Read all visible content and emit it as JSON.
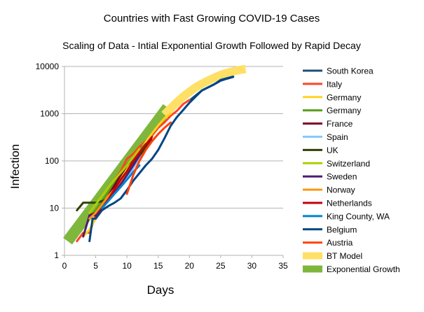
{
  "chart_data": {
    "type": "line",
    "title": "Countries with Fast Growing COVID-19 Cases",
    "subtitle": "Scaling of Data - Intial Exponential Growth Followed by Rapid Decay",
    "xlabel": "Days",
    "ylabel": "Infection",
    "xlim": [
      0,
      35
    ],
    "ylim": [
      1,
      10000
    ],
    "yscale": "log",
    "x_ticks": [
      0,
      5,
      10,
      15,
      20,
      25,
      30,
      35
    ],
    "x_tick_labels": [
      "0",
      "5",
      "10",
      "15",
      "20",
      "25",
      "30",
      "35"
    ],
    "y_ticks": [
      1,
      10,
      100,
      1000,
      10000
    ],
    "y_tick_labels": [
      "1",
      "10",
      "100",
      "1000",
      "10000"
    ],
    "legend_position": "right",
    "series": [
      {
        "name": "South Korea",
        "color": "#1f4e79",
        "width": 3,
        "x": [
          20,
          22,
          24,
          25,
          27
        ],
        "y": [
          1900,
          3100,
          4200,
          5200,
          6100
        ]
      },
      {
        "name": "Italy",
        "color": "#ff4422",
        "width": 3,
        "x": [
          2,
          3,
          4,
          5,
          6,
          7,
          8,
          9,
          10,
          11,
          12,
          13,
          14,
          15,
          16,
          17,
          18,
          19,
          20
        ],
        "y": [
          2,
          3,
          3,
          7,
          12,
          20,
          40,
          60,
          110,
          140,
          200,
          260,
          350,
          500,
          650,
          900,
          1150,
          1600,
          1950
        ]
      },
      {
        "name": "Germany",
        "color": "#ffd320",
        "width": 3,
        "x": [
          3,
          4,
          5,
          6,
          7,
          8,
          9,
          10,
          11,
          12,
          13,
          14,
          15,
          16,
          17
        ],
        "y": [
          2.5,
          3.5,
          6,
          9,
          15,
          25,
          40,
          65,
          100,
          160,
          250,
          380,
          560,
          800,
          1000
        ]
      },
      {
        "name": "Germany",
        "color": "#579d1c",
        "width": 3,
        "x": [
          4,
          5,
          6,
          7,
          8,
          9,
          10,
          11,
          12,
          13
        ],
        "y": [
          6,
          9,
          14,
          22,
          35,
          55,
          85,
          120,
          170,
          230
        ]
      },
      {
        "name": "France",
        "color": "#7e0021",
        "width": 3,
        "x": [
          4,
          5,
          6,
          7,
          8,
          9,
          10,
          11,
          12,
          13,
          14
        ],
        "y": [
          7,
          8,
          12,
          18,
          30,
          50,
          80,
          110,
          150,
          200,
          280
        ]
      },
      {
        "name": "Spain",
        "color": "#83caff",
        "width": 3,
        "x": [
          5,
          6,
          7,
          8,
          9,
          10,
          11,
          12,
          13
        ],
        "y": [
          8,
          11,
          16,
          22,
          30,
          42,
          70,
          120,
          200
        ]
      },
      {
        "name": "UK",
        "color": "#314004",
        "width": 3,
        "x": [
          2,
          3,
          4,
          5,
          6,
          7,
          8,
          9,
          10,
          11,
          12,
          13,
          14
        ],
        "y": [
          9,
          13,
          13,
          13,
          14,
          16,
          22,
          36,
          55,
          85,
          130,
          190,
          260
        ]
      },
      {
        "name": "Switzerland",
        "color": "#aecf00",
        "width": 3,
        "x": [
          4,
          5,
          6,
          7,
          8,
          9,
          10,
          11,
          12
        ],
        "y": [
          8,
          12,
          18,
          27,
          40,
          56,
          80,
          120,
          180
        ]
      },
      {
        "name": "Sweden",
        "color": "#4b1f6f",
        "width": 3,
        "x": [
          3,
          4,
          5,
          6,
          7,
          8,
          9,
          10,
          11,
          12
        ],
        "y": [
          2.5,
          7,
          7,
          12,
          16,
          22,
          32,
          50,
          80,
          130
        ]
      },
      {
        "name": "Norway",
        "color": "#ff950e",
        "width": 3,
        "x": [
          4,
          5,
          6,
          7,
          8,
          9,
          10,
          11,
          12
        ],
        "y": [
          6,
          8,
          12,
          18,
          25,
          38,
          60,
          100,
          160
        ]
      },
      {
        "name": "Netherlands",
        "color": "#c5000b",
        "width": 3,
        "x": [
          5,
          6,
          7,
          8,
          9,
          10,
          11,
          12,
          13,
          14
        ],
        "y": [
          6,
          10,
          15,
          25,
          40,
          60,
          100,
          150,
          220,
          320
        ]
      },
      {
        "name": "King County, WA",
        "color": "#0084d1",
        "width": 3,
        "x": [
          6,
          7,
          8,
          9,
          10,
          11,
          12
        ],
        "y": [
          10,
          14,
          20,
          28,
          40,
          58,
          80
        ]
      },
      {
        "name": "Belgium",
        "color": "#004586",
        "width": 3,
        "x": [
          4,
          4.5,
          5,
          6,
          7,
          8,
          9,
          10,
          11,
          12,
          13,
          14,
          15,
          16,
          17,
          18,
          19,
          20,
          21,
          22,
          23,
          24,
          25,
          26,
          27
        ],
        "y": [
          2,
          6,
          6,
          9,
          11,
          13,
          16,
          24,
          38,
          55,
          80,
          110,
          170,
          300,
          550,
          850,
          1200,
          1700,
          2300,
          3100,
          3600,
          4200,
          5000,
          5500,
          6000
        ]
      },
      {
        "name": "Austria",
        "color": "#ff420e",
        "width": 3,
        "x": [
          10,
          11,
          12,
          13,
          14,
          15,
          16,
          17
        ],
        "y": [
          20,
          50,
          100,
          170,
          260,
          370,
          500,
          650
        ]
      },
      {
        "name": "BT Model",
        "color": "#ffe066",
        "width": 12,
        "x": [
          16,
          17,
          18,
          19,
          20,
          21,
          22,
          23,
          24,
          25,
          26,
          27,
          28,
          29
        ],
        "y": [
          950,
          1300,
          1750,
          2300,
          2900,
          3600,
          4300,
          5000,
          5800,
          6600,
          7300,
          7900,
          8400,
          8800
        ]
      },
      {
        "name": "Exponential Growth",
        "color": "#7fb73d",
        "width": 16,
        "x": [
          0.5,
          16.5
        ],
        "y": [
          2,
          1350
        ]
      }
    ]
  }
}
